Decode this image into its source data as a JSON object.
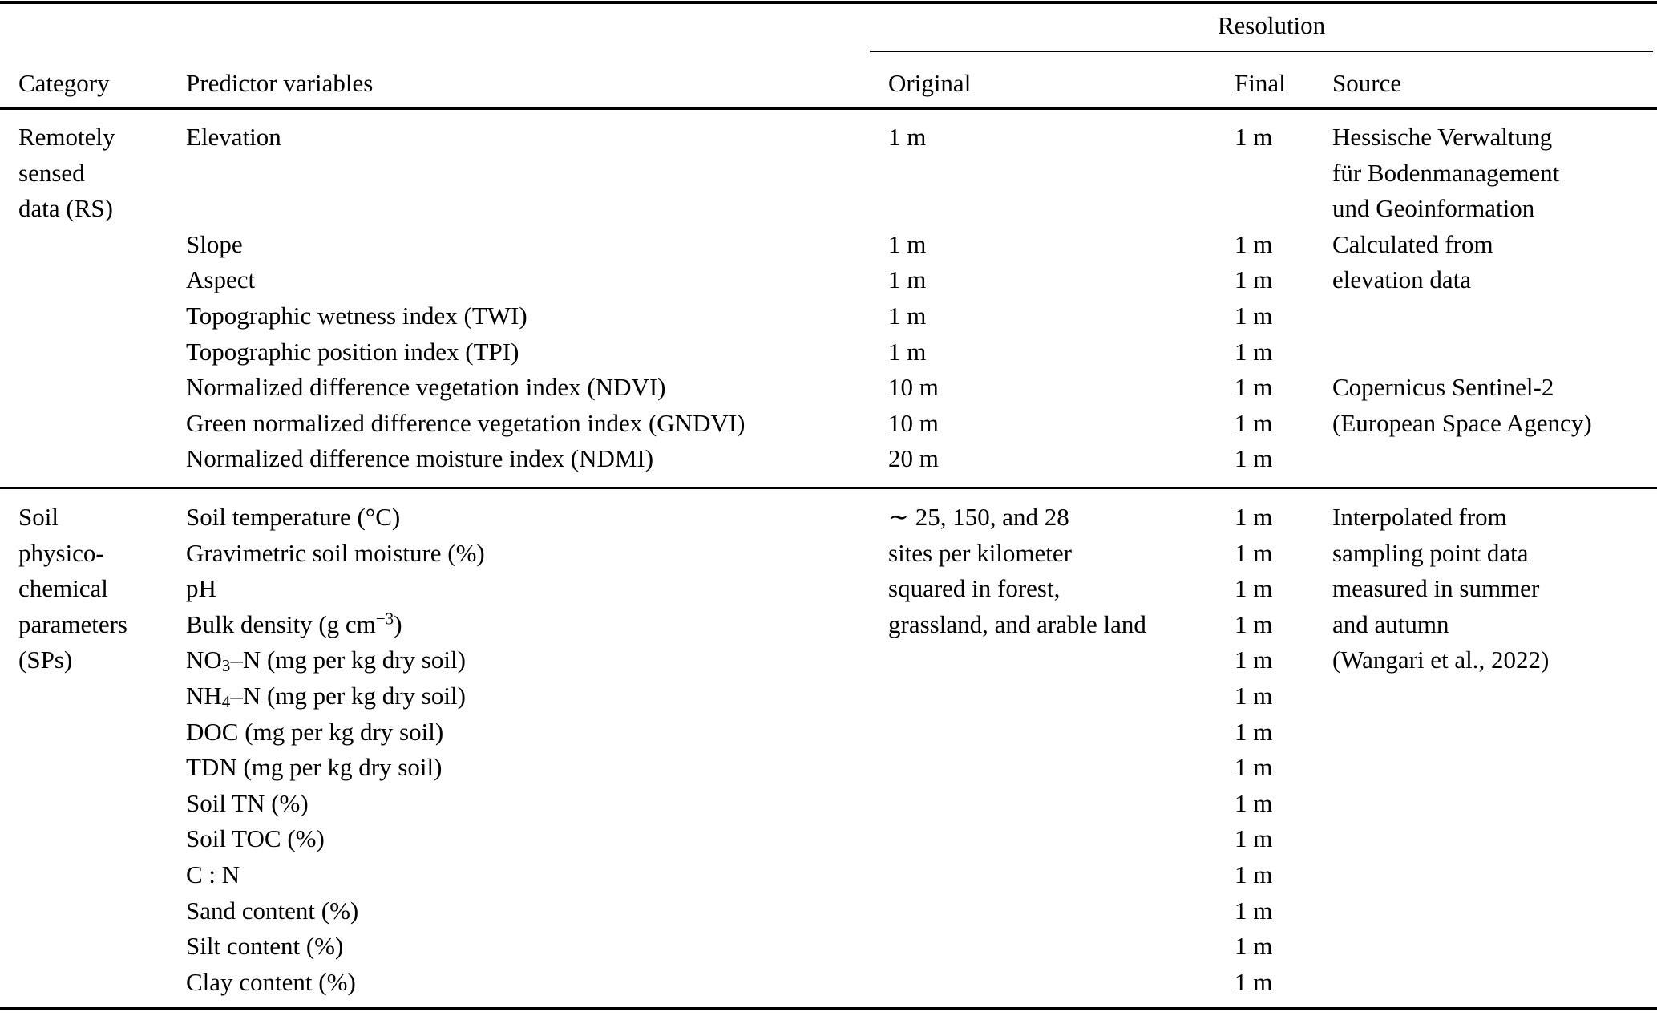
{
  "colors": {
    "text": "#000000",
    "background": "#ffffff",
    "rule": "#000000"
  },
  "table": {
    "header": {
      "resolution_label": "Resolution",
      "columns": [
        "Category",
        "Predictor variables",
        "Original",
        "Final",
        "Source"
      ]
    },
    "sections": [
      {
        "id": "remotely-sensed-data",
        "lines": [
          [
            "Remotely",
            "Elevation",
            "1 m",
            "1 m",
            "Hessische Verwaltung"
          ],
          [
            "sensed",
            "",
            "",
            "",
            "für Bodenmanagement"
          ],
          [
            "data (RS)",
            "",
            "",
            "",
            "und Geoinformation"
          ],
          [
            "",
            "Slope",
            "1 m",
            "1 m",
            "Calculated from"
          ],
          [
            "",
            "Aspect",
            "1 m",
            "1 m",
            "elevation data"
          ],
          [
            "",
            "Topographic wetness index (TWI)",
            "1 m",
            "1 m",
            ""
          ],
          [
            "",
            "Topographic position index (TPI)",
            "1 m",
            "1 m",
            ""
          ],
          [
            "",
            "Normalized difference vegetation index (NDVI)",
            "10 m",
            "1 m",
            "Copernicus Sentinel-2"
          ],
          [
            "",
            "Green normalized difference vegetation index (GNDVI)",
            "10 m",
            "1 m",
            "(European Space Agency)"
          ],
          [
            "",
            "Normalized difference moisture index (NDMI)",
            "20 m",
            "1 m",
            ""
          ]
        ]
      },
      {
        "id": "soil-physico-chemical-parameters",
        "lines": [
          [
            "Soil",
            "Soil temperature (°C)",
            "∼ 25, 150, and 28",
            "1 m",
            "Interpolated from"
          ],
          [
            "physico-",
            "Gravimetric soil moisture (%)",
            "sites per kilometer",
            "1 m",
            "sampling point data"
          ],
          [
            "chemical",
            "pH",
            "squared in forest,",
            "1 m",
            "measured in summer"
          ],
          [
            "parameters",
            "Bulk density (g cm<sup>−3</sup>)",
            "grassland, and arable land",
            "1 m",
            "and autumn"
          ],
          [
            "(SPs)",
            "NO<sub>3</sub>–N (mg per kg dry soil)",
            "",
            "1 m",
            "(Wangari et al., 2022)"
          ],
          [
            "",
            "NH<sub>4</sub>–N (mg per kg dry soil)",
            "",
            "1 m",
            ""
          ],
          [
            "",
            "DOC (mg per kg dry soil)",
            "",
            "1 m",
            ""
          ],
          [
            "",
            "TDN (mg per kg dry soil)",
            "",
            "1 m",
            ""
          ],
          [
            "",
            "Soil TN (%)",
            "",
            "1 m",
            ""
          ],
          [
            "",
            "Soil TOC (%)",
            "",
            "1 m",
            ""
          ],
          [
            "",
            "C : N",
            "",
            "1 m",
            ""
          ],
          [
            "",
            "Sand content (%)",
            "",
            "1 m",
            ""
          ],
          [
            "",
            "Silt content (%)",
            "",
            "1 m",
            ""
          ],
          [
            "",
            "Clay content (%)",
            "",
            "1 m",
            ""
          ]
        ]
      }
    ]
  }
}
